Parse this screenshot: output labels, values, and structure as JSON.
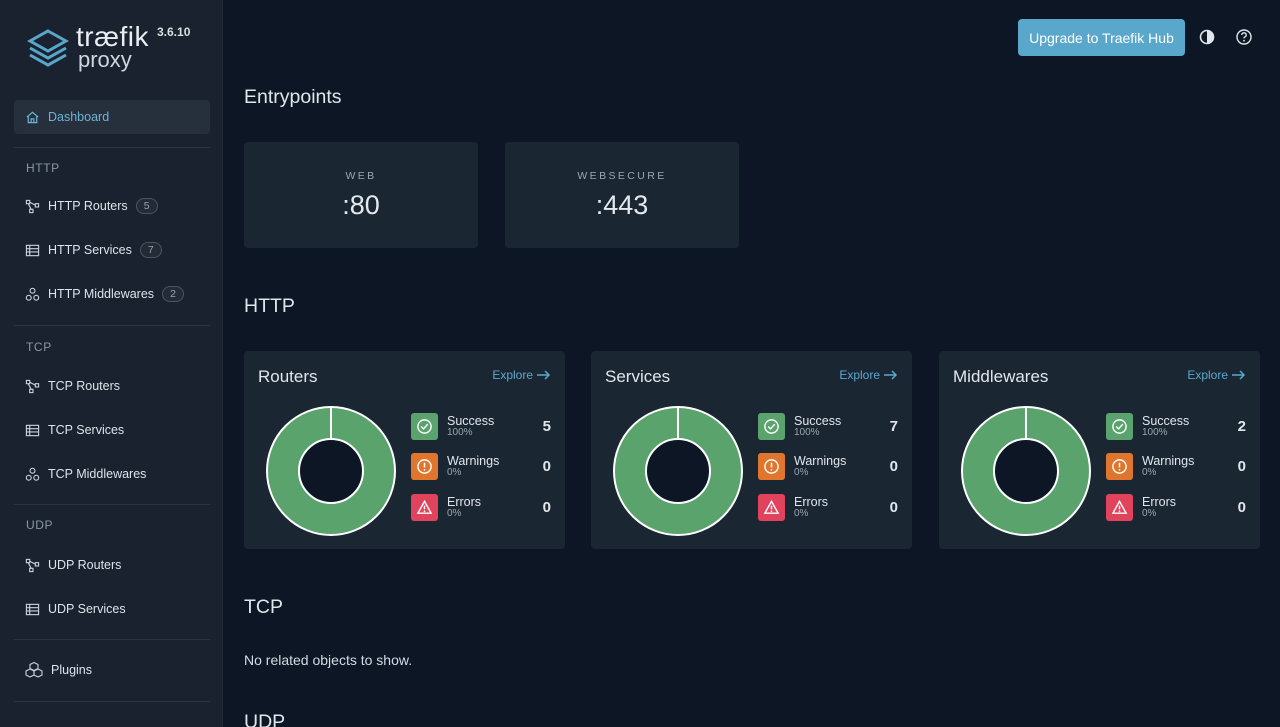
{
  "brand": {
    "name": "træfik",
    "sub": "proxy",
    "version": "3.6.10"
  },
  "header": {
    "upgrade_label": "Upgrade to Traefik Hub"
  },
  "sidebar": {
    "dashboard": "Dashboard",
    "http_section": "HTTP",
    "http_routers": {
      "label": "HTTP Routers",
      "count": "5"
    },
    "http_services": {
      "label": "HTTP Services",
      "count": "7"
    },
    "http_middlewares": {
      "label": "HTTP Middlewares",
      "count": "2"
    },
    "tcp_section": "TCP",
    "tcp_routers": "TCP Routers",
    "tcp_services": "TCP Services",
    "tcp_middlewares": "TCP Middlewares",
    "udp_section": "UDP",
    "udp_routers": "UDP Routers",
    "udp_services": "UDP Services",
    "plugins": "Plugins"
  },
  "main": {
    "entrypoints_title": "Entrypoints",
    "entrypoints": [
      {
        "name": "WEB",
        "port": ":80"
      },
      {
        "name": "WEBSECURE",
        "port": ":443"
      }
    ],
    "http_title": "HTTP",
    "explore_label": "Explore",
    "cards": [
      {
        "title": "Routers",
        "success": {
          "label": "Success",
          "pct": "100%",
          "value": "5"
        },
        "warnings": {
          "label": "Warnings",
          "pct": "0%",
          "value": "0"
        },
        "errors": {
          "label": "Errors",
          "pct": "0%",
          "value": "0"
        }
      },
      {
        "title": "Services",
        "success": {
          "label": "Success",
          "pct": "100%",
          "value": "7"
        },
        "warnings": {
          "label": "Warnings",
          "pct": "0%",
          "value": "0"
        },
        "errors": {
          "label": "Errors",
          "pct": "0%",
          "value": "0"
        }
      },
      {
        "title": "Middlewares",
        "success": {
          "label": "Success",
          "pct": "100%",
          "value": "2"
        },
        "warnings": {
          "label": "Warnings",
          "pct": "0%",
          "value": "0"
        },
        "errors": {
          "label": "Errors",
          "pct": "0%",
          "value": "0"
        }
      }
    ],
    "tcp_title": "TCP",
    "tcp_empty": "No related objects to show.",
    "udp_title": "UDP"
  },
  "colors": {
    "success": "#5aa36d",
    "warning": "#e0762e",
    "error": "#e1425c",
    "accent": "#5aa7cc"
  },
  "icons": {
    "theme": "contrast-icon",
    "help": "help-icon"
  }
}
